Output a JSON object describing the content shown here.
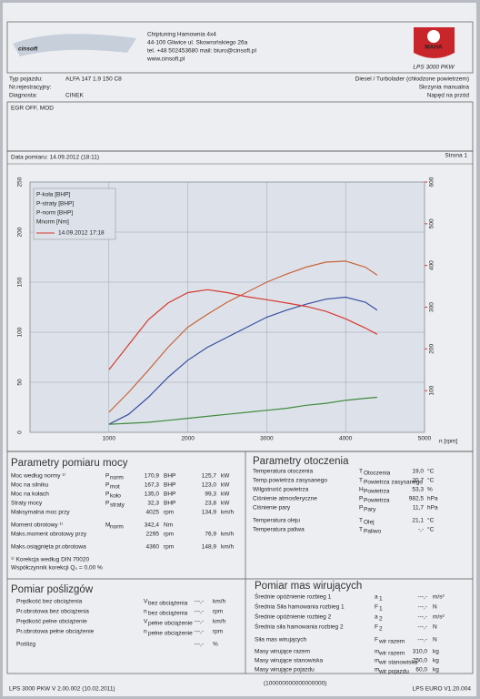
{
  "header": {
    "logo": "cinsoft",
    "company": [
      "Chiptuning  Hamownia 4x4",
      "44-100 Gliwice ul. Skowrońskiego 26a",
      "tel. +48 502453680  mail: biuro@cinsoft.pl",
      "www.cinsoft.pl"
    ],
    "brand": "MAHA",
    "model": "LPS 3000 PKW"
  },
  "vehicle": {
    "rows": [
      {
        "label": "Typ pojazdu:",
        "value": "ALFA 147 1.9 150 C8"
      },
      {
        "label": "Nr.rejestracyjny:"
      },
      {
        "label": "Diagnosta:",
        "value": "CINEK"
      }
    ],
    "right": [
      "Diesel / Turbolader (chłodzone powietrzem)",
      "Skrzynia manualna",
      "Napęd na przód"
    ]
  },
  "notes": "EGR OFF, MOD",
  "date_line": "Data pomiaru: 14.09.2012 (18:11)",
  "page_label": "Strona 1",
  "chart_data": {
    "type": "line",
    "xlabel": "n [rpm]",
    "legend_note": "14.09.2012 17:18",
    "x": [
      1000,
      1250,
      1500,
      1750,
      2000,
      2250,
      2500,
      2750,
      3000,
      3250,
      3500,
      3750,
      4000,
      4250,
      4400
    ],
    "series": [
      {
        "name": "P-koła [BHP]",
        "color": "#3a4fa0",
        "values": [
          8,
          18,
          35,
          55,
          72,
          85,
          95,
          105,
          115,
          122,
          128,
          133,
          135,
          130,
          122
        ]
      },
      {
        "name": "P-straty [BHP]",
        "color": "#3f8a3a",
        "values": [
          8,
          9,
          10,
          12,
          14,
          16,
          18,
          20,
          22,
          24,
          27,
          29,
          32,
          34,
          35
        ]
      },
      {
        "name": "P-norm [BHP]",
        "color": "#c8643c",
        "values": [
          20,
          40,
          62,
          85,
          105,
          118,
          130,
          140,
          150,
          158,
          165,
          170,
          171,
          165,
          157
        ]
      },
      {
        "name": "Mnorm [Nm]",
        "color": "#d8392f",
        "axis": "y2",
        "values": [
          150,
          210,
          270,
          310,
          335,
          342,
          335,
          325,
          318,
          310,
          302,
          290,
          272,
          250,
          235
        ]
      }
    ],
    "xlim": [
      0,
      5000
    ],
    "xticks": [
      1000,
      2000,
      3000,
      4000,
      5000
    ],
    "ylim": [
      0,
      250
    ],
    "yticks": [
      0,
      50,
      100,
      150,
      200,
      250
    ],
    "y2lim": [
      0,
      600
    ],
    "y2ticks": [
      100,
      200,
      300,
      400,
      500,
      600
    ],
    "y2color": "#d8392f",
    "grid": true
  },
  "power": {
    "title": "Parametry pomiaru mocy",
    "rows": [
      {
        "label": "Moc według normy ¹⁾",
        "color": "#c0302a",
        "symbol": {
          "main": "P",
          "sub": "norm"
        },
        "values": [
          {
            "v": "170,9",
            "u": "BHP"
          },
          {
            "v": "125,7",
            "u": "kW"
          }
        ]
      },
      {
        "label": "Moc na silniku",
        "color": "#c0302a",
        "symbol": {
          "main": "P",
          "sub": "mot"
        },
        "values": [
          {
            "v": "167,3",
            "u": "BHP"
          },
          {
            "v": "123,0",
            "u": "kW"
          }
        ]
      },
      {
        "label": "Moc na kołach",
        "color": "#2f3f9a",
        "symbol": {
          "main": "P",
          "sub": "koło"
        },
        "values": [
          {
            "v": "135,0",
            "u": "BHP"
          },
          {
            "v": "99,3",
            "u": "kW"
          }
        ]
      },
      {
        "label": "Straty mocy",
        "color": "#3a7f35",
        "symbol": {
          "main": "P",
          "sub": "straty"
        },
        "values": [
          {
            "v": "32,3",
            "u": "BHP"
          },
          {
            "v": "23,8",
            "u": "kW"
          }
        ]
      },
      {
        "label": "Maksymalna moc przy",
        "values": [
          {
            "v": "4025",
            "u": "rpm"
          },
          {
            "v": "134,9",
            "u": "km/h"
          }
        ]
      },
      {
        "label": "Moment obrotowy ¹⁾",
        "color": "#c0302a",
        "symbol": {
          "main": "M",
          "sub": "norm"
        },
        "values": [
          {
            "v": "342,4",
            "u": "Nm"
          }
        ]
      },
      {
        "label": "Maks.moment obrotowy przy",
        "values": [
          {
            "v": "2295",
            "u": "rpm"
          },
          {
            "v": "76,9",
            "u": "km/h"
          }
        ]
      },
      {
        "label": "Maks.osiągnięta pr.obrotowa",
        "values": [
          {
            "v": "4360",
            "u": "rpm"
          },
          {
            "v": "148,9",
            "u": "km/h"
          }
        ]
      },
      {
        "label": "¹⁾ Korekcja według DIN 70020",
        "color": "#c0302a"
      },
      {
        "label": "Współczynnik korekcji Q₀ =  0,00 %",
        "color": "#c0302a"
      }
    ]
  },
  "environment": {
    "title": "Parametry otoczenia",
    "rows": [
      {
        "label": "Temperatura otoczenia",
        "symbol": {
          "main": "T",
          "sub": "Otoczenia"
        },
        "values": [
          {
            "v": "19,0",
            "u": "°C"
          }
        ]
      },
      {
        "label": "Temp.powietrza zasysanego",
        "symbol": {
          "main": "T",
          "sub": "Powietrza zasysanego"
        },
        "values": [
          {
            "v": "20,7",
            "u": "°C"
          }
        ]
      },
      {
        "label": "Wilgotność powietrza",
        "symbol": {
          "main": "H",
          "sub": "Powietrza"
        },
        "values": [
          {
            "v": "53,3",
            "u": "%"
          }
        ]
      },
      {
        "label": "Ciśnienie atmosferyczne",
        "symbol": {
          "main": "P",
          "sub": "Powietrza"
        },
        "values": [
          {
            "v": "982,5",
            "u": "hPa"
          }
        ]
      },
      {
        "label": "Ciśnienie pary",
        "symbol": {
          "main": "P",
          "sub": "Pary"
        },
        "values": [
          {
            "v": "11,7",
            "u": "hPa"
          }
        ]
      },
      {
        "label": "Temperatura oleju",
        "symbol": {
          "main": "T",
          "sub": "Olej"
        },
        "values": [
          {
            "v": "21,1",
            "u": "°C"
          }
        ]
      },
      {
        "label": "Temperatura paliwa",
        "symbol": {
          "main": "T",
          "sub": "Paliwo"
        },
        "values": [
          {
            "v": "-,-",
            "u": "°C"
          }
        ]
      }
    ]
  },
  "slip": {
    "title": "Pomiar poślizgów",
    "rows": [
      {
        "label": "Prędkość bez obciążenia",
        "symbol": {
          "main": "V",
          "sub": "bez obciążenia"
        },
        "values": [
          {
            "v": "---,-",
            "u": "km/h"
          }
        ]
      },
      {
        "label": "Pr.obrotowa bez obciążenia",
        "symbol": {
          "main": "n",
          "sub": "bez obciążenia"
        },
        "values": [
          {
            "v": "---,-",
            "u": "rpm"
          }
        ]
      },
      {
        "label": "Prędkość pełne obciążenie",
        "symbol": {
          "main": "V",
          "sub": "pełne obciążenie"
        },
        "values": [
          {
            "v": "---,-",
            "u": "km/h"
          }
        ]
      },
      {
        "label": "Pr.obrotowa pełne obciążenie",
        "symbol": {
          "main": "n",
          "sub": "pełne obciążenie"
        },
        "values": [
          {
            "v": "---,-",
            "u": "rpm"
          }
        ]
      },
      {
        "label": "Poślizg",
        "values": [
          {
            "v": "---,-",
            "u": "%"
          }
        ]
      }
    ]
  },
  "masses": {
    "title": "Pomiar mas wirujących",
    "rows": [
      {
        "label": "Średnie opóźnienie rozbieg 1",
        "symbol": {
          "main": "a",
          "sub": "1"
        },
        "values": [
          {
            "v": "---,-",
            "u": "m/s²"
          }
        ]
      },
      {
        "label": "Średnia Siła hamowania rozbieg 1",
        "symbol": {
          "main": "F",
          "sub": "1"
        },
        "values": [
          {
            "v": "---,-",
            "u": "N"
          }
        ]
      },
      {
        "label": "Średnie opóźnienie rozbieg 2",
        "symbol": {
          "main": "a",
          "sub": "2"
        },
        "values": [
          {
            "v": "---,-",
            "u": "m/s²"
          }
        ]
      },
      {
        "label": "Średnia siła hamowania rozbieg 2",
        "symbol": {
          "main": "F",
          "sub": "2"
        },
        "values": [
          {
            "v": "---,-",
            "u": "N"
          }
        ]
      },
      {
        "label": "Siła mas wirujących",
        "symbol": {
          "main": "F",
          "sub": "wir razem"
        },
        "values": [
          {
            "v": "---,-",
            "u": "N"
          }
        ]
      },
      {
        "label": "Masy wirujące razem",
        "symbol": {
          "main": "m",
          "sub": "wir razem"
        },
        "values": [
          {
            "v": "310,0",
            "u": "kg"
          }
        ]
      },
      {
        "label": "Masy wirujące stanowiska",
        "symbol": {
          "main": "m",
          "sub": "wir stanowiska"
        },
        "values": [
          {
            "v": "250,0",
            "u": "kg"
          }
        ]
      },
      {
        "label": "Masy wirujące pojazdu",
        "symbol": {
          "main": "m",
          "sub": "wir pojazdu"
        },
        "values": [
          {
            "v": "60,0",
            "u": "kg"
          }
        ]
      }
    ]
  },
  "footer": {
    "left": "LPS 3000 PKW V 2.00.002 (10.02.2011)",
    "center": "(100000000000000000)",
    "right": "LPS EURO V1.20.004"
  }
}
